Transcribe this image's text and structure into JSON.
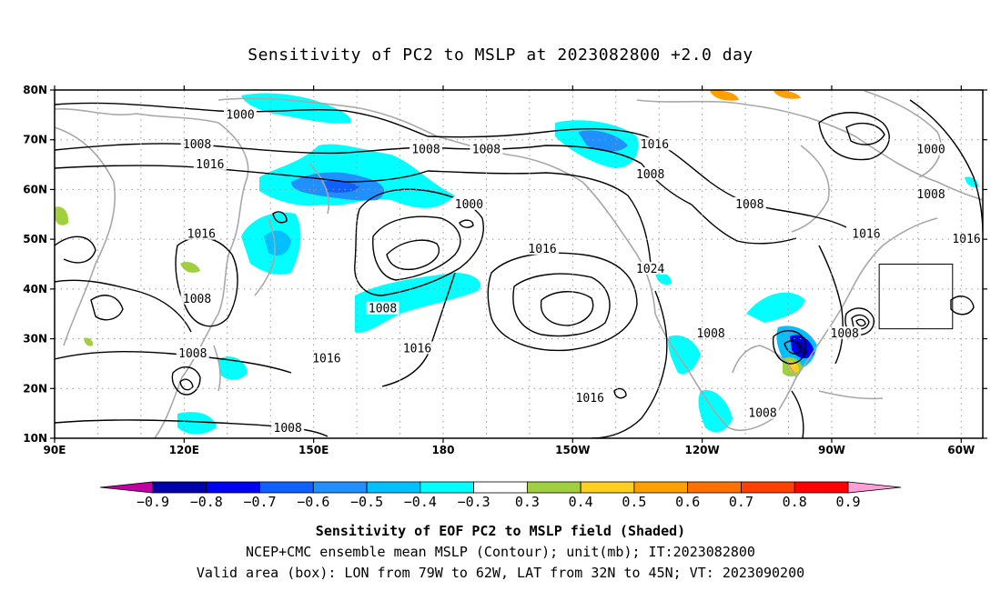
{
  "title": "Sensitivity of PC2 to MSLP at 2023082800 +2.0 day",
  "map": {
    "lon_range": [
      90,
      305
    ],
    "lat_range": [
      10,
      80
    ],
    "lon_ticks": [
      {
        "lon": 90,
        "label": "90E"
      },
      {
        "lon": 120,
        "label": "120E"
      },
      {
        "lon": 150,
        "label": "150E"
      },
      {
        "lon": 180,
        "label": "180"
      },
      {
        "lon": 210,
        "label": "150W"
      },
      {
        "lon": 240,
        "label": "120W"
      },
      {
        "lon": 270,
        "label": "90W"
      },
      {
        "lon": 300,
        "label": "60W"
      }
    ],
    "lat_ticks": [
      {
        "lat": 10,
        "label": "10N"
      },
      {
        "lat": 20,
        "label": "20N"
      },
      {
        "lat": 30,
        "label": "30N"
      },
      {
        "lat": 40,
        "label": "40N"
      },
      {
        "lat": 50,
        "label": "50N"
      },
      {
        "lat": 60,
        "label": "60N"
      },
      {
        "lat": 70,
        "label": "70N"
      },
      {
        "lat": 80,
        "label": "80N"
      }
    ],
    "valid_box": {
      "lon_min": 281,
      "lon_max": 298,
      "lat_min": 32,
      "lat_max": 45
    },
    "contour_labels": [
      {
        "text": "1000",
        "lon": 133,
        "lat": 75
      },
      {
        "text": "1008",
        "lon": 123,
        "lat": 69
      },
      {
        "text": "1016",
        "lon": 126,
        "lat": 65
      },
      {
        "text": "1008",
        "lon": 176,
        "lat": 68
      },
      {
        "text": "1008",
        "lon": 190,
        "lat": 68
      },
      {
        "text": "1016",
        "lon": 229,
        "lat": 69
      },
      {
        "text": "1008",
        "lon": 228,
        "lat": 63
      },
      {
        "text": "1000",
        "lon": 293,
        "lat": 68
      },
      {
        "text": "1008",
        "lon": 293,
        "lat": 59
      },
      {
        "text": "1000",
        "lon": 186,
        "lat": 57
      },
      {
        "text": "1008",
        "lon": 251,
        "lat": 57
      },
      {
        "text": "1016",
        "lon": 124,
        "lat": 51
      },
      {
        "text": "1016",
        "lon": 278,
        "lat": 51
      },
      {
        "text": "1016",
        "lon": 304,
        "lat": 50
      },
      {
        "text": "1016",
        "lon": 203,
        "lat": 48
      },
      {
        "text": "1024",
        "lon": 228,
        "lat": 44
      },
      {
        "text": "1008",
        "lon": 123,
        "lat": 38
      },
      {
        "text": "1008",
        "lon": 166,
        "lat": 36
      },
      {
        "text": "1008",
        "lon": 242,
        "lat": 31
      },
      {
        "text": "1008",
        "lon": 273,
        "lat": 31
      },
      {
        "text": "1016",
        "lon": 174,
        "lat": 28
      },
      {
        "text": "1008",
        "lon": 122,
        "lat": 27
      },
      {
        "text": "1016",
        "lon": 153,
        "lat": 26
      },
      {
        "text": "1016",
        "lon": 214,
        "lat": 18
      },
      {
        "text": "1008",
        "lon": 254,
        "lat": 15
      },
      {
        "text": "1008",
        "lon": 144,
        "lat": 12
      }
    ]
  },
  "colorbar": {
    "levels": [
      "-0.9",
      "-0.8",
      "-0.7",
      "-0.6",
      "-0.5",
      "-0.4",
      "-0.3",
      "0.3",
      "0.4",
      "0.5",
      "0.6",
      "0.7",
      "0.8",
      "0.9"
    ],
    "colors": [
      "#c000a0",
      "#0000a8",
      "#0000f0",
      "#1060ff",
      "#2090ff",
      "#00c0ff",
      "#00ffff",
      "#ffffff",
      "#a0d040",
      "#ffd020",
      "#ffa000",
      "#ff7000",
      "#ff4000",
      "#ff0000",
      "#ff9ed8"
    ]
  },
  "captions": {
    "line1": "Sensitivity of EOF PC2 to MSLP field (Shaded)",
    "line2": "NCEP+CMC ensemble mean MSLP (Contour); unit(mb); IT:2023082800",
    "line3": "Valid area (box): LON from 79W to 62W, LAT from 32N to 45N; VT: 2023090200"
  }
}
